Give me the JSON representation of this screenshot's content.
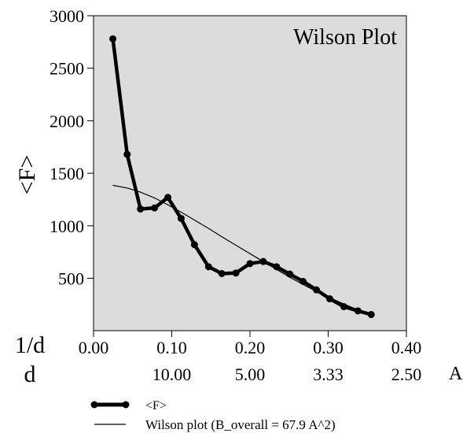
{
  "chart_data": {
    "type": "line",
    "title": "Wilson Plot",
    "ylabel": "<F>",
    "xlabel_row1": "1/d",
    "xlabel_row2": "d",
    "x_unit": "A",
    "xlim": [
      0.0,
      0.4
    ],
    "ylim": [
      0,
      3000
    ],
    "grid": false,
    "legend_position": "bottom",
    "x_ticks": [
      "0.00",
      "0.10",
      "0.20",
      "0.30",
      "0.40"
    ],
    "x_ticks_d": [
      "10.00",
      "5.00",
      "3.33",
      "2.50"
    ],
    "y_ticks": [
      "500",
      "1000",
      "1500",
      "2000",
      "2500",
      "3000"
    ],
    "series": [
      {
        "name": "<F>",
        "style": "thick-with-markers",
        "x": [
          0.0247,
          0.043,
          0.06,
          0.078,
          0.095,
          0.112,
          0.129,
          0.147,
          0.164,
          0.182,
          0.2,
          0.217,
          0.234,
          0.251,
          0.268,
          0.285,
          0.302,
          0.32,
          0.338,
          0.355
        ],
        "y": [
          2780,
          1680,
          1160,
          1170,
          1270,
          1070,
          820,
          610,
          545,
          550,
          640,
          660,
          610,
          540,
          470,
          390,
          305,
          230,
          190,
          155
        ]
      },
      {
        "name": "Wilson plot (B_overall =  67.9 A^2)",
        "style": "thin",
        "x": [
          0.0247,
          0.043,
          0.06,
          0.078,
          0.095,
          0.112,
          0.129,
          0.147,
          0.164,
          0.182,
          0.2,
          0.217,
          0.234,
          0.251,
          0.268,
          0.285,
          0.302,
          0.32,
          0.338,
          0.355
        ],
        "y": [
          1385,
          1360,
          1320,
          1265,
          1200,
          1130,
          1055,
          975,
          895,
          815,
          735,
          660,
          585,
          510,
          440,
          375,
          315,
          255,
          200,
          155
        ]
      }
    ]
  }
}
